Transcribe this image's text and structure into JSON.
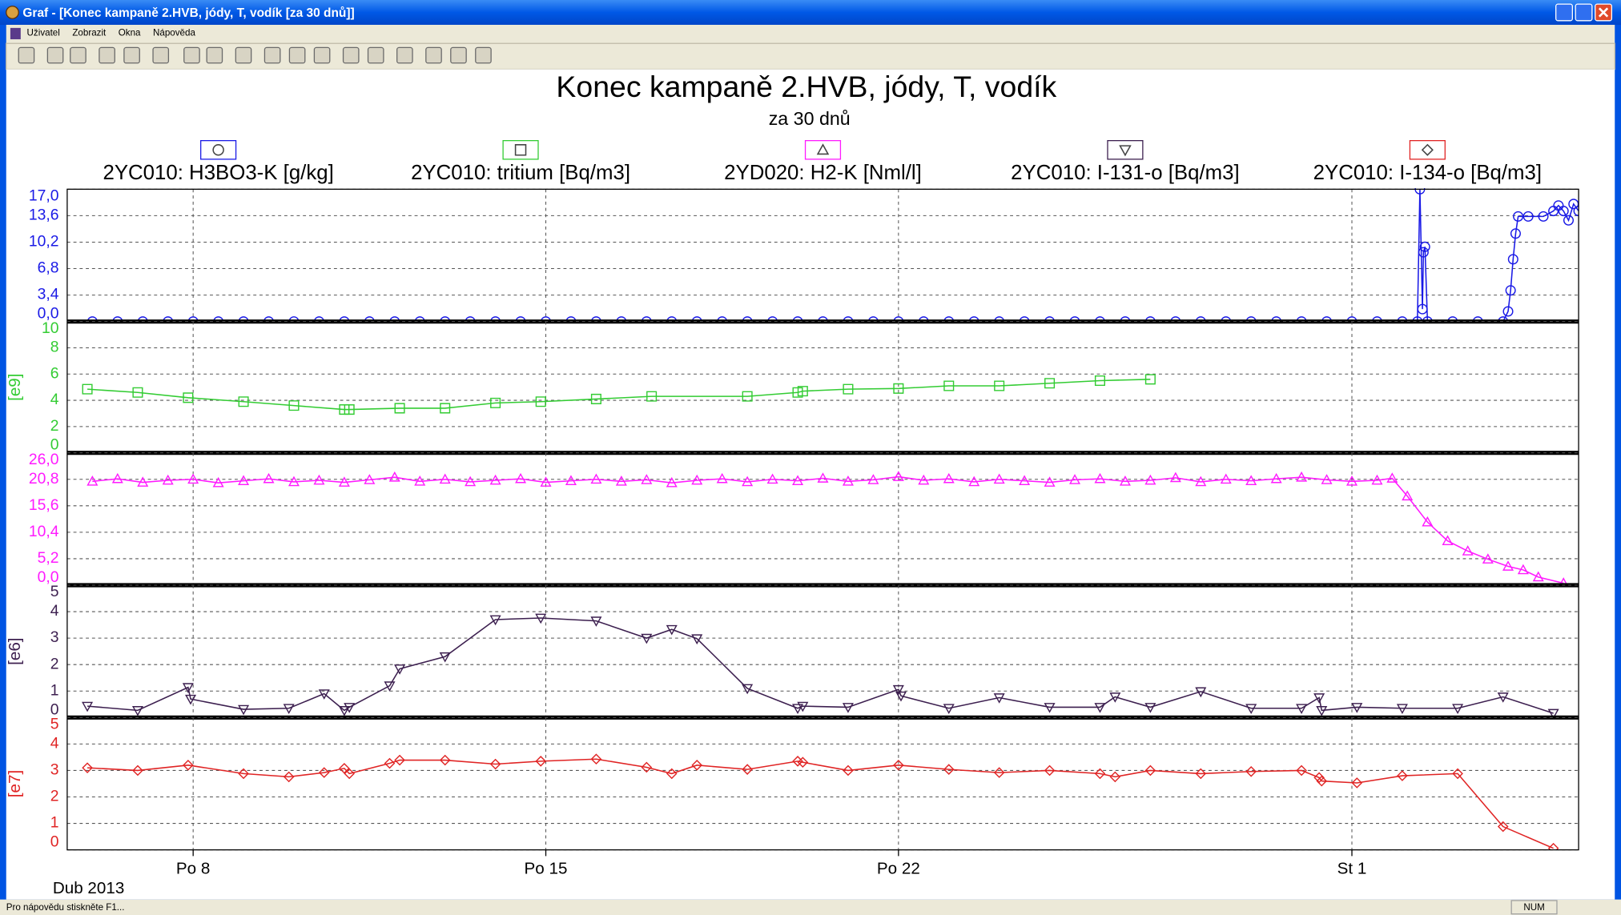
{
  "window": {
    "title": "Graf - [Konec kampaně 2.HVB, jódy, T, vodík [za 30 dnů]]",
    "menu": [
      "Uživatel",
      "Zobrazit",
      "Okna",
      "Nápověda"
    ],
    "status": "Pro nápovědu stiskněte F1...",
    "indicator": "NUM"
  },
  "chart_data": {
    "type": "line",
    "title": "Konec kampaně 2.HVB, jódy, T, vodík",
    "subtitle": "za 30 dnů",
    "xlabel": "Dub 2013",
    "xlim": [
      5.5,
      35.5
    ],
    "xticks": [
      {
        "value": 8,
        "label": "Po 8"
      },
      {
        "value": 15,
        "label": "Po 15"
      },
      {
        "value": 22,
        "label": "Po 22"
      },
      {
        "value": 31,
        "label": "St 1"
      }
    ],
    "grid": true,
    "legend": "top",
    "series": [
      {
        "name": "2YC010: H3BO3-K [g/kg]",
        "color": "#1a1ae6",
        "marker": "circle",
        "ylim": [
          0,
          17
        ],
        "yticks": [
          {
            "value": 0,
            "label": "0,0"
          },
          {
            "value": 3.4,
            "label": "3,4"
          },
          {
            "value": 6.8,
            "label": "6,8"
          },
          {
            "value": 10.2,
            "label": "10,2"
          },
          {
            "value": 13.6,
            "label": "13,6"
          },
          {
            "value": 17,
            "label": "17,0"
          }
        ],
        "x": [
          6,
          6.5,
          7,
          7.5,
          8,
          8.5,
          9,
          9.5,
          10,
          10.5,
          11,
          11.5,
          12,
          12.5,
          13,
          13.5,
          14,
          14.5,
          15,
          15.5,
          16,
          16.5,
          17,
          17.5,
          18,
          18.5,
          19,
          19.5,
          20,
          20.5,
          21,
          21.5,
          22,
          22.5,
          23,
          23.5,
          24,
          24.5,
          25,
          25.5,
          26,
          26.5,
          27,
          27.5,
          28,
          28.5,
          29,
          29.5,
          30,
          30.5,
          31,
          31.5,
          32,
          32.3,
          32.35,
          32.4,
          32.42,
          32.45,
          32.5,
          33,
          33.5,
          34,
          34.1,
          34.15,
          34.2,
          34.25,
          34.3,
          34.5,
          34.8,
          35,
          35.1,
          35.2,
          35.3,
          35.4,
          35.5
        ],
        "values": [
          0,
          0,
          0,
          0,
          0,
          0,
          0,
          0,
          0,
          0,
          0,
          0,
          0,
          0,
          0,
          0,
          0,
          0,
          0,
          0,
          0,
          0,
          0,
          0,
          0,
          0,
          0,
          0,
          0,
          0,
          0,
          0,
          0,
          0,
          0,
          0,
          0,
          0,
          0,
          0,
          0,
          0,
          0,
          0,
          0,
          0,
          0,
          0,
          0,
          0,
          0,
          0,
          0,
          0,
          17,
          1.6,
          8.9,
          9.6,
          0,
          0,
          0,
          0,
          1.3,
          4.0,
          8.0,
          11.3,
          13.5,
          13.5,
          13.5,
          14.2,
          14.9,
          14.2,
          13.0,
          15.1,
          14.2
        ]
      },
      {
        "name": "2YC010: tritium [Bq/m3]",
        "color": "#33cc33",
        "marker": "square",
        "ylabel": "[e9]",
        "ylim": [
          0,
          10
        ],
        "yticks": [
          0,
          2,
          4,
          6,
          8,
          10
        ],
        "x": [
          5.9,
          6.9,
          7.9,
          9.0,
          10.0,
          11.0,
          11.1,
          12.1,
          13.0,
          14.0,
          14.9,
          16.0,
          17.1,
          19.0,
          20.0,
          20.1,
          21.0,
          22.0,
          23.0,
          24.0,
          25.0,
          26.0,
          27.0
        ],
        "values": [
          4.85,
          4.6,
          4.2,
          3.9,
          3.6,
          3.3,
          3.3,
          3.4,
          3.4,
          3.8,
          3.9,
          4.1,
          4.3,
          4.3,
          4.6,
          4.7,
          4.85,
          4.9,
          5.1,
          5.1,
          5.3,
          5.5,
          5.6
        ]
      },
      {
        "name": "2YD020: H2-K [Nml/l]",
        "color": "#ff1aff",
        "marker": "triangle",
        "ylim": [
          0,
          26
        ],
        "yticks": [
          {
            "value": 0,
            "label": "0,0"
          },
          {
            "value": 5.2,
            "label": "5,2"
          },
          {
            "value": 10.4,
            "label": "10,4"
          },
          {
            "value": 15.6,
            "label": "15,6"
          },
          {
            "value": 20.8,
            "label": "20,8"
          },
          {
            "value": 26,
            "label": "26,0"
          }
        ],
        "x": [
          6,
          6.5,
          7,
          7.5,
          8,
          8.5,
          9,
          9.5,
          10,
          10.5,
          11,
          11.5,
          12,
          12.5,
          13,
          13.5,
          14,
          14.5,
          15,
          15.5,
          16,
          16.5,
          17,
          17.5,
          18,
          18.5,
          19,
          19.5,
          20,
          20.5,
          21,
          21.5,
          22,
          22.5,
          23,
          23.5,
          24,
          24.5,
          25,
          25.5,
          26,
          26.5,
          27,
          27.5,
          28,
          28.5,
          29,
          29.5,
          30,
          30.5,
          31,
          31.5,
          31.8,
          32.1,
          32.5,
          32.9,
          33.3,
          33.7,
          34.1,
          34.4,
          34.7,
          35.2
        ],
        "values": [
          20.4,
          20.9,
          20.2,
          20.6,
          20.8,
          20.1,
          20.5,
          20.9,
          20.3,
          20.6,
          20.2,
          20.7,
          21.2,
          20.4,
          20.8,
          20.3,
          20.6,
          20.9,
          20.2,
          20.5,
          20.8,
          20.4,
          20.7,
          20.1,
          20.6,
          20.9,
          20.3,
          20.8,
          20.5,
          21.0,
          20.4,
          20.7,
          21.3,
          20.6,
          20.9,
          20.3,
          20.8,
          20.5,
          20.2,
          20.7,
          20.9,
          20.4,
          20.6,
          21.1,
          20.3,
          20.8,
          20.5,
          20.9,
          21.2,
          20.7,
          20.4,
          20.6,
          21.0,
          17.5,
          12.4,
          8.7,
          6.7,
          5.1,
          3.7,
          3.0,
          1.6,
          0.4
        ]
      },
      {
        "name": "2YC010: I-131-o [Bq/m3]",
        "color": "#3c1f4f",
        "marker": "triangle-down",
        "ylabel": "[e6]",
        "ylim": [
          0,
          5
        ],
        "yticks": [
          0,
          1,
          2,
          3,
          4,
          5
        ],
        "x": [
          5.9,
          6.9,
          7.9,
          7.95,
          9.0,
          9.9,
          10.6,
          11.0,
          11.1,
          11.9,
          12.1,
          13.0,
          14.0,
          14.9,
          16.0,
          17.0,
          17.5,
          18.0,
          19.0,
          20.0,
          20.1,
          21.0,
          22.0,
          22.05,
          23.0,
          24.0,
          25.0,
          26.0,
          26.3,
          27.0,
          28.0,
          29.0,
          30.0,
          30.35,
          30.4,
          31.1,
          32.0,
          33.1,
          34.0,
          35.0
        ],
        "values": [
          0.43,
          0.27,
          1.14,
          0.7,
          0.31,
          0.35,
          0.9,
          0.27,
          0.39,
          1.2,
          1.84,
          2.3,
          3.7,
          3.76,
          3.65,
          3.0,
          3.33,
          2.98,
          1.1,
          0.35,
          0.43,
          0.39,
          1.06,
          0.82,
          0.35,
          0.75,
          0.39,
          0.39,
          0.78,
          0.39,
          0.98,
          0.35,
          0.35,
          0.75,
          0.27,
          0.39,
          0.35,
          0.35,
          0.78,
          0.16
        ]
      },
      {
        "name": "2YC010: I-134-o [Bq/m3]",
        "color": "#e02424",
        "marker": "diamond",
        "ylabel": "[e7]",
        "ylim": [
          0,
          5
        ],
        "yticks": [
          0,
          1,
          2,
          3,
          4,
          5
        ],
        "x": [
          5.9,
          6.9,
          7.9,
          9.0,
          9.9,
          10.6,
          11.0,
          11.1,
          11.9,
          12.1,
          13.0,
          14.0,
          14.9,
          16.0,
          17.0,
          17.5,
          18.0,
          19.0,
          20.0,
          20.1,
          21.0,
          22.0,
          23.0,
          24.0,
          25.0,
          26.0,
          26.3,
          27.0,
          28.0,
          29.0,
          30.0,
          30.35,
          30.4,
          31.1,
          32.0,
          33.1,
          34.0,
          35.0
        ],
        "values": [
          3.1,
          3.0,
          3.2,
          2.88,
          2.76,
          2.92,
          3.08,
          2.88,
          3.27,
          3.39,
          3.39,
          3.24,
          3.35,
          3.43,
          3.12,
          2.88,
          3.2,
          3.04,
          3.35,
          3.31,
          3.0,
          3.2,
          3.04,
          2.92,
          3.0,
          2.88,
          2.76,
          3.0,
          2.88,
          2.96,
          3.0,
          2.73,
          2.6,
          2.53,
          2.8,
          2.88,
          0.88,
          0.06
        ]
      }
    ]
  }
}
